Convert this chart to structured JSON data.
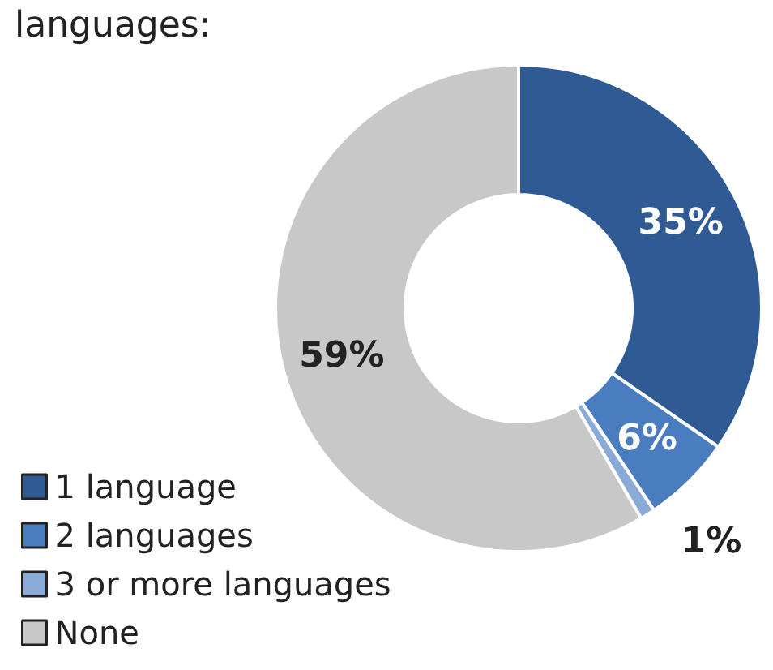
{
  "chart_data": {
    "type": "donut",
    "title": "languages:",
    "categories": [
      "1 language",
      "2 languages",
      "3 or more languages",
      "None"
    ],
    "values": [
      35,
      6,
      1,
      59
    ],
    "colors": [
      "#2f5a94",
      "#4a7cc0",
      "#8aaad8",
      "#c8c8c8"
    ],
    "value_labels": [
      "35%",
      "6%",
      "1%",
      "59%"
    ],
    "legend": "bottom left"
  }
}
